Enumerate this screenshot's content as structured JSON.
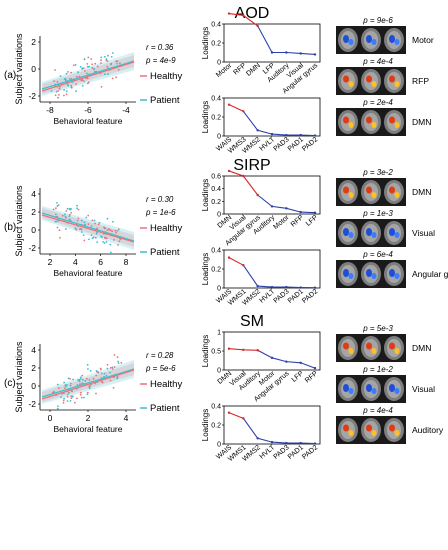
{
  "colors": {
    "healthy": "#e8737a",
    "patient": "#3cbfd0",
    "loading_red": "#d9262c",
    "loading_blue": "#2c3fa8"
  },
  "panels": [
    {
      "label": "(a)",
      "title": "AOD",
      "stats": {
        "r": "r = 0.36",
        "p": "p = 4e-9"
      },
      "scatter": {
        "xlabel": "Behavioral feature",
        "ylabel": "Subject variations",
        "xticks": [
          "-8",
          "-6",
          "-4"
        ],
        "yticks": [
          "-2",
          "0",
          "2"
        ]
      },
      "legend": [
        "Healthy",
        "Patient"
      ],
      "net": {
        "ylabel": "Loadings",
        "yticks": [
          "0",
          "0.2",
          "0.4"
        ],
        "categories": [
          "Motor",
          "RFP",
          "DMN",
          "LFP",
          "Auditory",
          "Visual",
          "Angular gyrus"
        ],
        "values": [
          0.51,
          0.49,
          0.38,
          0.1,
          0.1,
          0.09,
          0.08
        ],
        "red_count": 3
      },
      "beh": {
        "ylabel": "Loadings",
        "yticks": [
          "0",
          "0.2",
          "0.4"
        ],
        "categories": [
          "WAIS",
          "WMS3",
          "WMS2",
          "HVLT",
          "PAD3",
          "PAD1",
          "PAD2"
        ],
        "values": [
          0.33,
          0.26,
          0.06,
          0.02,
          0.01,
          0.01,
          0.005
        ],
        "red_count": 2
      },
      "brains": [
        {
          "p": "p = 9e-6",
          "name": "Motor",
          "map": "blue"
        },
        {
          "p": "p = 4e-4",
          "name": "RFP",
          "map": "warm"
        },
        {
          "p": "p = 2e-4",
          "name": "DMN",
          "map": "warm"
        }
      ]
    },
    {
      "label": "(b)",
      "title": "SIRP",
      "stats": {
        "r": "r = 0.30",
        "p": "p = 1e-6"
      },
      "scatter": {
        "xlabel": "Behavioral feature",
        "ylabel": "Subject variations",
        "xticks": [
          "2",
          "4",
          "6",
          "8"
        ],
        "yticks": [
          "-2",
          "0",
          "2",
          "4"
        ]
      },
      "legend": [
        "Healthy",
        "Patient"
      ],
      "net": {
        "ylabel": "Loadings",
        "yticks": [
          "0",
          "0.2",
          "0.4",
          "0.6"
        ],
        "categories": [
          "DMN",
          "Visual",
          "Angular gyrus",
          "Auditory",
          "Motor",
          "RFP",
          "LFP"
        ],
        "values": [
          0.68,
          0.6,
          0.3,
          0.12,
          0.09,
          0.03,
          0.02
        ],
        "red_count": 3
      },
      "beh": {
        "ylabel": "Loadings",
        "yticks": [
          "0",
          "0.2",
          "0.4"
        ],
        "categories": [
          "WAIS",
          "WMS1",
          "WMS2",
          "HVLT",
          "PAD3",
          "PAD1",
          "PAD2"
        ],
        "values": [
          0.32,
          0.24,
          0.02,
          0.01,
          0.01,
          0.005,
          0.003
        ],
        "red_count": 2
      },
      "brains": [
        {
          "p": "p = 3e-2",
          "name": "DMN",
          "map": "warm"
        },
        {
          "p": "p = 1e-3",
          "name": "Visual",
          "map": "blue"
        },
        {
          "p": "p = 6e-4",
          "name": "Angular gyrus",
          "map": "blue"
        }
      ]
    },
    {
      "label": "(c)",
      "title": "SM",
      "stats": {
        "r": "r = 0.28",
        "p": "p = 5e-6"
      },
      "scatter": {
        "xlabel": "Behavioral feature",
        "ylabel": "Subject variations",
        "xticks": [
          "0",
          "2",
          "4"
        ],
        "yticks": [
          "-2",
          "0",
          "2",
          "4"
        ]
      },
      "legend": [
        "Healthy",
        "Patient"
      ],
      "net": {
        "ylabel": "Loadings",
        "yticks": [
          "0",
          "0.5",
          "1"
        ],
        "categories": [
          "DMN",
          "Visual",
          "Auditory",
          "Motor",
          "Angular gyrus",
          "LFP",
          "RFP"
        ],
        "values": [
          0.56,
          0.53,
          0.52,
          0.32,
          0.22,
          0.19,
          0.05
        ],
        "red_count": 3
      },
      "beh": {
        "ylabel": "Loadings",
        "yticks": [
          "0",
          "0.2",
          "0.4"
        ],
        "categories": [
          "WAIS",
          "WMS1",
          "WMS2",
          "HVLT",
          "PAD3",
          "PAD1",
          "PAD2"
        ],
        "values": [
          0.33,
          0.27,
          0.06,
          0.02,
          0.01,
          0.01,
          0.005
        ],
        "red_count": 2
      },
      "brains": [
        {
          "p": "p = 5e-3",
          "name": "DMN",
          "map": "warm"
        },
        {
          "p": "p = 1e-2",
          "name": "Visual",
          "map": "blue"
        },
        {
          "p": "p = 4e-4",
          "name": "Auditory",
          "map": "warm"
        }
      ]
    }
  ],
  "chart_data": [
    {
      "type": "scatter",
      "xlabel": "Behavioral feature",
      "ylabel": "Subject variations",
      "xlim": [
        -9,
        -2
      ],
      "ylim": [
        -3,
        4
      ],
      "series": [
        {
          "name": "Healthy"
        },
        {
          "name": "Patient"
        }
      ],
      "annotations": [
        "r = 0.36",
        "p = 4e-9"
      ]
    },
    {
      "type": "line",
      "title": "AOD",
      "ylabel": "Loadings",
      "categories": [
        "Motor",
        "RFP",
        "DMN",
        "LFP",
        "Auditory",
        "Visual",
        "Angular gyrus"
      ],
      "values": [
        0.51,
        0.49,
        0.38,
        0.1,
        0.1,
        0.09,
        0.08
      ],
      "ylim": [
        0,
        0.6
      ]
    },
    {
      "type": "line",
      "ylabel": "Loadings",
      "categories": [
        "WAIS",
        "WMS3",
        "WMS2",
        "HVLT",
        "PAD3",
        "PAD1",
        "PAD2"
      ],
      "values": [
        0.33,
        0.26,
        0.06,
        0.02,
        0.01,
        0.01,
        0.005
      ],
      "ylim": [
        0,
        0.4
      ]
    },
    {
      "type": "scatter",
      "xlabel": "Behavioral feature",
      "ylabel": "Subject variations",
      "xlim": [
        1.5,
        9.5
      ],
      "ylim": [
        -3,
        5
      ],
      "series": [
        {
          "name": "Healthy"
        },
        {
          "name": "Patient"
        }
      ],
      "annotations": [
        "r = 0.30",
        "p = 1e-6"
      ]
    },
    {
      "type": "line",
      "title": "SIRP",
      "ylabel": "Loadings",
      "categories": [
        "DMN",
        "Visual",
        "Angular gyrus",
        "Auditory",
        "Motor",
        "RFP",
        "LFP"
      ],
      "values": [
        0.68,
        0.6,
        0.3,
        0.12,
        0.09,
        0.03,
        0.02
      ],
      "ylim": [
        0,
        0.7
      ]
    },
    {
      "type": "line",
      "ylabel": "Loadings",
      "categories": [
        "WAIS",
        "WMS1",
        "WMS2",
        "HVLT",
        "PAD3",
        "PAD1",
        "PAD2"
      ],
      "values": [
        0.32,
        0.24,
        0.02,
        0.01,
        0.01,
        0.005,
        0.003
      ],
      "ylim": [
        0,
        0.4
      ]
    },
    {
      "type": "scatter",
      "xlabel": "Behavioral feature",
      "ylabel": "Subject variations",
      "xlim": [
        -3,
        5.5
      ],
      "ylim": [
        -3,
        5.5
      ],
      "series": [
        {
          "name": "Healthy"
        },
        {
          "name": "Patient"
        }
      ],
      "annotations": [
        "r = 0.28",
        "p = 5e-6"
      ]
    },
    {
      "type": "line",
      "title": "SM",
      "ylabel": "Loadings",
      "categories": [
        "DMN",
        "Visual",
        "Auditory",
        "Motor",
        "Angular gyrus",
        "LFP",
        "RFP"
      ],
      "values": [
        0.56,
        0.53,
        0.52,
        0.32,
        0.22,
        0.19,
        0.05
      ],
      "ylim": [
        0,
        1
      ]
    },
    {
      "type": "line",
      "ylabel": "Loadings",
      "categories": [
        "WAIS",
        "WMS1",
        "WMS2",
        "HVLT",
        "PAD3",
        "PAD1",
        "PAD2"
      ],
      "values": [
        0.33,
        0.27,
        0.06,
        0.02,
        0.01,
        0.01,
        0.005
      ],
      "ylim": [
        0,
        0.4
      ]
    }
  ]
}
